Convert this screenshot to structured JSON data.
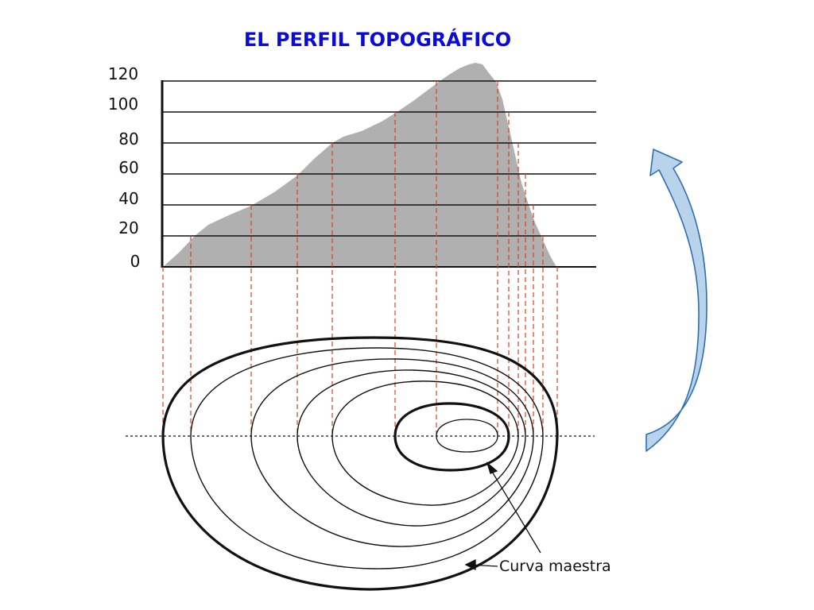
{
  "title": "EL PERFIL TOPOGRÁFICO",
  "y_ticks": [
    "120",
    "100",
    "80",
    "60",
    "40",
    "20",
    "0"
  ],
  "annotation": "Curva maestra",
  "colors": {
    "title": "#0b0bd9",
    "profile_fill": "#b0b0b0",
    "guide_lines": "#e0401c",
    "arrow_fill": "#b9d3ea",
    "arrow_stroke": "#2f6fb0"
  },
  "icons": {
    "return_arrow": "curved-arrow-up-icon"
  }
}
